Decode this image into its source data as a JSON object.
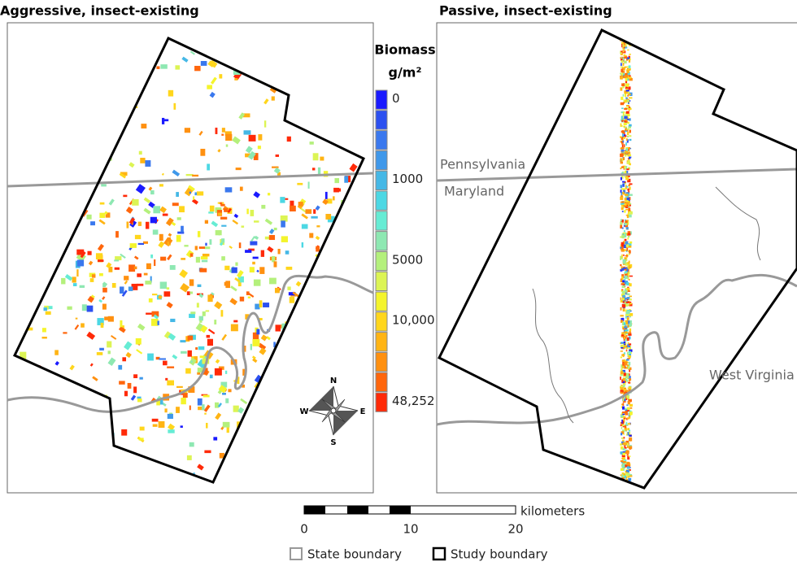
{
  "panels": [
    {
      "title": "Aggressive, insect-existing"
    },
    {
      "title": "Passive, insect-existing",
      "labels": [
        "Pennsylvania",
        "Maryland",
        "West Virginia"
      ]
    }
  ],
  "legend": {
    "title": "Biomass",
    "unit": "g/m²",
    "labels": [
      "0",
      "1000",
      "5000",
      "10,000",
      "48,252"
    ],
    "colors": [
      "#1a1aff",
      "#2c50f0",
      "#3a78ee",
      "#3f98ea",
      "#45b8e6",
      "#4cd8e4",
      "#66ecd4",
      "#8ee8b2",
      "#b4f07c",
      "#dcf454",
      "#f4f42c",
      "#ffd61c",
      "#ffb414",
      "#ff9010",
      "#ff660c",
      "#ff2a08"
    ]
  },
  "scale": {
    "unit": "kilometers",
    "ticks": [
      "0",
      "10",
      "20"
    ]
  },
  "compass": {
    "n": "N",
    "s": "S",
    "e": "E",
    "w": "W"
  },
  "key": [
    "State boundary",
    "Study boundary"
  ]
}
